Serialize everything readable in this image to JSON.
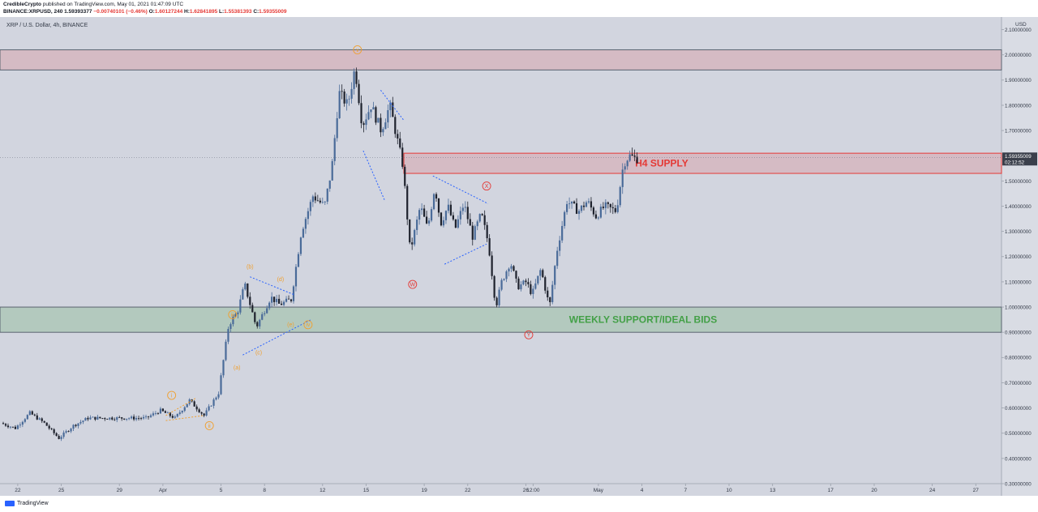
{
  "header": {
    "author": "CredibleCrypto",
    "published_text": "published on TradingView.com, May 01, 2021 01:47:09 UTC",
    "symbol": "BINANCE:XRPUSD, 240",
    "last": "1.59393377",
    "change": "−0.00740101 (−0.46%)",
    "o_label": "O:",
    "o": "1.60127244",
    "h_label": "H:",
    "h": "1.62841895",
    "l_label": "L:",
    "l": "1.55381393",
    "c_label": "C:",
    "c": "1.59355009"
  },
  "footer": {
    "brand": "TradingView"
  },
  "colors": {
    "bg": "#d2d5df",
    "up": "#4a6b99",
    "down": "#1e222d",
    "supply": "#e53935",
    "support": "#43a047",
    "wave_orange": "#f0a030",
    "wave_red": "#e53935",
    "trend_blue": "#2962ff"
  },
  "chart_data": {
    "type": "candlestick",
    "instrument": "XRP / U.S. Dollar, 4h, BINANCE",
    "currency": "USD",
    "ylim": [
      0.3,
      2.15
    ],
    "yticks": [
      2.1,
      2.0,
      1.9,
      1.8,
      1.7,
      1.6,
      1.5,
      1.4,
      1.3,
      1.2,
      1.1,
      1.0,
      0.9,
      0.8,
      0.7,
      0.6,
      0.5,
      0.4,
      0.3
    ],
    "ytick_labels": [
      "2.10000000",
      "2.00000000",
      "1.90000000",
      "1.80000000",
      "1.70000000",
      "1.60000000",
      "1.50000000",
      "1.40000000",
      "1.30000000",
      "1.20000000",
      "1.10000000",
      "1.00000000",
      "0.90000000",
      "0.80000000",
      "0.70000000",
      "0.60000000",
      "0.50000000",
      "0.40000000",
      "0.30000000"
    ],
    "x_start": "Mar 21 00:00",
    "x_end": "Apr 28 12:00",
    "xtick_labels": [
      "22",
      "25",
      "29",
      "Apr",
      "5",
      "8",
      "12",
      "15",
      "19",
      "22",
      "26",
      "12:00",
      "May",
      "4",
      "7",
      "10",
      "13",
      "17",
      "20",
      "24",
      "27"
    ],
    "xtick_days": [
      1,
      4,
      8,
      11,
      15,
      18,
      22,
      25,
      29,
      32,
      36,
      36.5,
      41,
      44,
      47,
      50,
      53,
      57,
      60,
      64,
      67
    ],
    "price_label": "1.59355009",
    "countdown_label": "02:12:52",
    "grid": false,
    "zones": [
      {
        "name": "upper-resistance",
        "low": 1.94,
        "high": 2.02
      },
      {
        "name": "H4 SUPPLY",
        "label": "H4 SUPPLY",
        "low": 1.53,
        "high": 1.61
      },
      {
        "name": "WEEKLY SUPPORT/IDEAL BIDS",
        "label": "WEEKLY SUPPORT/IDEAL BIDS",
        "low": 0.9,
        "high": 1.0
      }
    ],
    "pivots": [
      {
        "day": 0,
        "p": 0.54
      },
      {
        "day": 1,
        "p": 0.52
      },
      {
        "day": 2,
        "p": 0.58
      },
      {
        "day": 3,
        "p": 0.54
      },
      {
        "day": 4,
        "p": 0.48
      },
      {
        "day": 5,
        "p": 0.53
      },
      {
        "day": 6,
        "p": 0.56
      },
      {
        "day": 8,
        "p": 0.56
      },
      {
        "day": 10,
        "p": 0.56
      },
      {
        "day": 11,
        "p": 0.59
      },
      {
        "day": 12,
        "p": 0.56
      },
      {
        "day": 13,
        "p": 0.63
      },
      {
        "day": 14,
        "p": 0.57
      },
      {
        "day": 15,
        "p": 0.66
      },
      {
        "day": 15.7,
        "p": 0.93
      },
      {
        "day": 16.3,
        "p": 0.98
      },
      {
        "day": 16.8,
        "p": 1.09
      },
      {
        "day": 17.6,
        "p": 0.92
      },
      {
        "day": 18.6,
        "p": 1.04
      },
      {
        "day": 19.2,
        "p": 1.01
      },
      {
        "day": 20,
        "p": 1.03
      },
      {
        "day": 20.7,
        "p": 1.3
      },
      {
        "day": 21.5,
        "p": 1.44
      },
      {
        "day": 22.3,
        "p": 1.4
      },
      {
        "day": 22.8,
        "p": 1.55
      },
      {
        "day": 23.3,
        "p": 1.85
      },
      {
        "day": 23.9,
        "p": 1.8
      },
      {
        "day": 24.4,
        "p": 1.95
      },
      {
        "day": 24.9,
        "p": 1.72
      },
      {
        "day": 25.5,
        "p": 1.8
      },
      {
        "day": 26.2,
        "p": 1.7
      },
      {
        "day": 26.8,
        "p": 1.8
      },
      {
        "day": 27.7,
        "p": 1.56
      },
      {
        "day": 28.2,
        "p": 1.22
      },
      {
        "day": 28.9,
        "p": 1.4
      },
      {
        "day": 29.4,
        "p": 1.31
      },
      {
        "day": 29.9,
        "p": 1.48
      },
      {
        "day": 30.3,
        "p": 1.33
      },
      {
        "day": 30.8,
        "p": 1.4
      },
      {
        "day": 31.3,
        "p": 1.31
      },
      {
        "day": 31.9,
        "p": 1.41
      },
      {
        "day": 32.5,
        "p": 1.28
      },
      {
        "day": 33.1,
        "p": 1.37
      },
      {
        "day": 33.6,
        "p": 1.25
      },
      {
        "day": 34.1,
        "p": 1.0
      },
      {
        "day": 34.5,
        "p": 1.1
      },
      {
        "day": 35.1,
        "p": 1.18
      },
      {
        "day": 35.6,
        "p": 1.08
      },
      {
        "day": 36.2,
        "p": 1.1
      },
      {
        "day": 36.6,
        "p": 1.05
      },
      {
        "day": 37.2,
        "p": 1.15
      },
      {
        "day": 37.8,
        "p": 1.0
      },
      {
        "day": 38.3,
        "p": 1.22
      },
      {
        "day": 39.0,
        "p": 1.42
      },
      {
        "day": 39.8,
        "p": 1.38
      },
      {
        "day": 40.4,
        "p": 1.42
      },
      {
        "day": 41.0,
        "p": 1.36
      },
      {
        "day": 41.6,
        "p": 1.4
      },
      {
        "day": 42.4,
        "p": 1.38
      },
      {
        "day": 42.9,
        "p": 1.57
      },
      {
        "day": 43.3,
        "p": 1.6
      },
      {
        "day": 43.7,
        "p": 1.59
      }
    ],
    "wave_labels": [
      {
        "text": "i",
        "day": 11.6,
        "p": 0.65,
        "color": "orange",
        "circled": true
      },
      {
        "text": "ii",
        "day": 14.2,
        "p": 0.53,
        "color": "orange",
        "circled": true
      },
      {
        "text": "(a)",
        "day": 16.1,
        "p": 0.76,
        "color": "orange",
        "circled": false
      },
      {
        "text": "iii",
        "day": 15.8,
        "p": 0.97,
        "color": "orange",
        "circled": true
      },
      {
        "text": "(b)",
        "day": 17.0,
        "p": 1.16,
        "color": "orange",
        "circled": false
      },
      {
        "text": "(c)",
        "day": 17.6,
        "p": 0.82,
        "color": "orange",
        "circled": false
      },
      {
        "text": "(d)",
        "day": 19.1,
        "p": 1.11,
        "color": "orange",
        "circled": false
      },
      {
        "text": "(e)",
        "day": 19.8,
        "p": 0.93,
        "color": "orange",
        "circled": false
      },
      {
        "text": "iv",
        "day": 21.0,
        "p": 0.93,
        "color": "orange",
        "circled": true
      },
      {
        "text": "v",
        "day": 24.4,
        "p": 2.02,
        "color": "orange",
        "circled": true
      },
      {
        "text": "W",
        "day": 28.2,
        "p": 1.09,
        "color": "red",
        "circled": true
      },
      {
        "text": "X",
        "day": 33.3,
        "p": 1.48,
        "color": "red",
        "circled": true
      },
      {
        "text": "Y",
        "day": 36.2,
        "p": 0.89,
        "color": "red",
        "circled": true
      }
    ],
    "trendlines": [
      {
        "color": "orange",
        "pts": [
          [
            11.2,
            0.57
          ],
          [
            13.3,
            0.64
          ]
        ]
      },
      {
        "color": "orange",
        "pts": [
          [
            11.2,
            0.55
          ],
          [
            13.8,
            0.57
          ]
        ]
      },
      {
        "color": "blue",
        "pts": [
          [
            16.5,
            0.81
          ],
          [
            21.2,
            0.95
          ]
        ]
      },
      {
        "color": "blue",
        "pts": [
          [
            17.0,
            1.12
          ],
          [
            20.0,
            1.05
          ]
        ]
      },
      {
        "color": "blue",
        "pts": [
          [
            24.8,
            1.62
          ],
          [
            26.3,
            1.42
          ]
        ]
      },
      {
        "color": "blue",
        "pts": [
          [
            26.0,
            1.86
          ],
          [
            27.6,
            1.74
          ]
        ]
      },
      {
        "color": "blue",
        "pts": [
          [
            29.6,
            1.52
          ],
          [
            33.4,
            1.41
          ]
        ]
      },
      {
        "color": "blue",
        "pts": [
          [
            30.4,
            1.17
          ],
          [
            33.3,
            1.25
          ]
        ]
      }
    ]
  }
}
